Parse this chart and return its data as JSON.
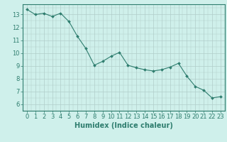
{
  "x": [
    0,
    1,
    2,
    3,
    4,
    5,
    6,
    7,
    8,
    9,
    10,
    11,
    12,
    13,
    14,
    15,
    16,
    17,
    18,
    19,
    20,
    21,
    22,
    23
  ],
  "y": [
    13.4,
    13.0,
    13.1,
    12.85,
    13.1,
    12.45,
    11.3,
    10.35,
    9.05,
    9.35,
    9.75,
    10.05,
    9.05,
    8.85,
    8.7,
    8.6,
    8.7,
    8.9,
    9.2,
    8.2,
    7.4,
    7.1,
    6.5,
    6.6
  ],
  "line_color": "#2e7d6e",
  "marker": "D",
  "marker_size": 2,
  "bg_color": "#cff0eb",
  "grid_color_major": "#b0cdc9",
  "grid_color_minor": "#b0cdc9",
  "xlabel": "Humidex (Indice chaleur)",
  "xlim": [
    -0.5,
    23.5
  ],
  "ylim": [
    5.5,
    13.8
  ],
  "yticks": [
    6,
    7,
    8,
    9,
    10,
    11,
    12,
    13
  ],
  "xticks": [
    0,
    1,
    2,
    3,
    4,
    5,
    6,
    7,
    8,
    9,
    10,
    11,
    12,
    13,
    14,
    15,
    16,
    17,
    18,
    19,
    20,
    21,
    22,
    23
  ],
  "font_size": 6,
  "xlabel_fontsize": 7
}
